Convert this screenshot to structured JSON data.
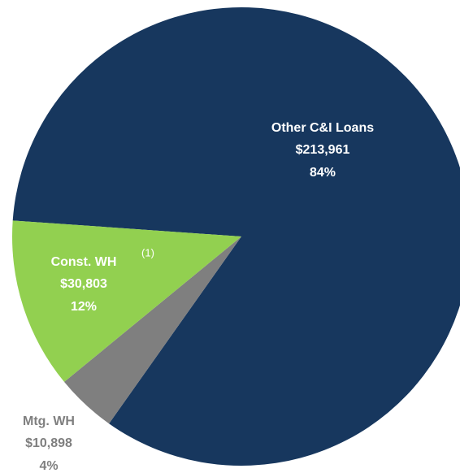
{
  "chart_data": {
    "type": "pie",
    "categories": [
      "Other C&I Loans",
      "Mtg. WH",
      "Const. WH"
    ],
    "values": [
      213961,
      10898,
      30803
    ],
    "value_labels": [
      "$213,961",
      "$10,898",
      "$30,803"
    ],
    "percent_labels": [
      "84%",
      "4%",
      "12%"
    ],
    "colors": [
      "#17375e",
      "#7f7f7f",
      "#92d050"
    ],
    "annotation": "(1)"
  }
}
